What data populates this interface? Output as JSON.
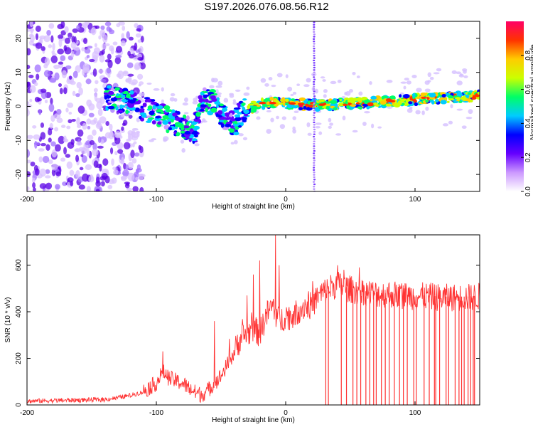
{
  "title": "S197.2026.076.08.56.R12",
  "chart_data": [
    {
      "type": "heatmap",
      "title": "S197.2026.076.08.56.R12",
      "xlabel": "Height of straight line (km)",
      "ylabel": "Frequency (Hz)",
      "xlim": [
        -200,
        150
      ],
      "ylim": [
        -25,
        25
      ],
      "xticks": [
        -200,
        -100,
        0,
        100
      ],
      "xtick_labels": [
        "-200",
        "-100",
        "0",
        "100"
      ],
      "yticks": [
        -20,
        -10,
        0,
        10,
        20
      ],
      "ytick_labels": [
        "-20",
        "-10",
        "0",
        "10",
        "20"
      ],
      "colorbar": {
        "label": "Normalized spectral amplitude",
        "range": [
          0,
          1
        ],
        "ticks": [
          0.0,
          0.2,
          0.4,
          0.6,
          0.8
        ],
        "tick_labels": [
          "0.0",
          "0.2",
          "0.4",
          "0.6",
          "0.8"
        ],
        "colormap": [
          "#ffffff",
          "#cc99ff",
          "#6600ff",
          "#0000ff",
          "#00ccff",
          "#00ff66",
          "#ccff00",
          "#ffcc00",
          "#ff3300",
          "#ff0066"
        ]
      },
      "ridge": {
        "x": [
          -140,
          -120,
          -100,
          -90,
          -80,
          -70,
          -65,
          -55,
          -50,
          -45,
          -40,
          -35,
          -30,
          -20,
          0,
          20,
          40,
          60,
          80,
          100,
          120,
          150
        ],
        "y": [
          3,
          1,
          -2,
          -4,
          -6,
          -7,
          2,
          1,
          -2,
          -4,
          -6,
          -2,
          -1,
          1,
          1,
          0.5,
          0.5,
          1,
          1.5,
          2,
          2.5,
          3
        ]
      },
      "vertical_artifact_x": 22,
      "noise_region_x": [
        -200,
        -120
      ]
    },
    {
      "type": "line",
      "xlabel": "Height of straight line (km)",
      "ylabel": "SNR (10 * v/v)",
      "xlim": [
        -200,
        150
      ],
      "ylim": [
        0,
        730
      ],
      "xticks": [
        -200,
        -100,
        0,
        100
      ],
      "xtick_labels": [
        "-200",
        "-100",
        "0",
        "100"
      ],
      "yticks": [
        0,
        200,
        400,
        600
      ],
      "ytick_labels": [
        "0",
        "200",
        "400",
        "600"
      ],
      "series": [
        {
          "name": "SNR",
          "color": "#ff3333",
          "x": [
            -200,
            -180,
            -160,
            -140,
            -130,
            -120,
            -110,
            -100,
            -95,
            -90,
            -85,
            -80,
            -75,
            -70,
            -65,
            -60,
            -55,
            -50,
            -45,
            -40,
            -35,
            -30,
            -25,
            -20,
            -15,
            -10,
            -5,
            0,
            5,
            10,
            15,
            20,
            25,
            30,
            35,
            40,
            45,
            50,
            60,
            70,
            80,
            90,
            100,
            110,
            120,
            130,
            140,
            150
          ],
          "values": [
            15,
            18,
            20,
            22,
            30,
            40,
            55,
            90,
            140,
            110,
            100,
            90,
            70,
            50,
            40,
            60,
            90,
            120,
            170,
            220,
            280,
            300,
            320,
            300,
            380,
            420,
            350,
            380,
            370,
            400,
            420,
            420,
            460,
            480,
            500,
            510,
            500,
            490,
            480,
            470,
            470,
            465,
            460,
            460,
            455,
            455,
            455,
            460
          ],
          "spikes": [
            {
              "x": -55,
              "y": 360
            },
            {
              "x": -30,
              "y": 470
            },
            {
              "x": -25,
              "y": 560
            },
            {
              "x": -20,
              "y": 620
            },
            {
              "x": -8,
              "y": 730
            },
            {
              "x": -5,
              "y": 600
            },
            {
              "x": -95,
              "y": 230
            },
            {
              "x": 40,
              "y": 600
            },
            {
              "x": 45,
              "y": 580
            }
          ],
          "dropout_x": [
            31,
            33,
            43,
            47,
            52,
            55,
            58,
            62,
            65,
            68,
            70,
            74,
            77,
            80,
            84,
            88,
            91,
            94,
            99,
            101,
            107,
            111,
            115,
            116,
            119,
            124,
            126,
            131,
            134,
            136,
            138,
            141,
            143,
            145,
            146
          ]
        }
      ]
    }
  ]
}
